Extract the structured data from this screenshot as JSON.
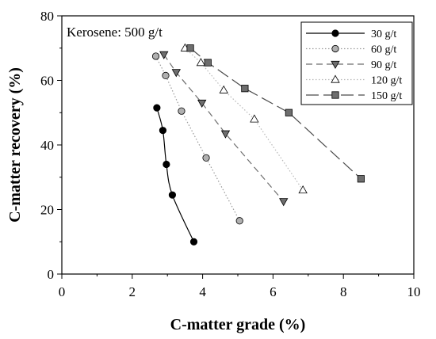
{
  "chart_data": {
    "type": "scatter",
    "xlabel": "C-matter grade (%)",
    "ylabel": "C-matter recovery (%)",
    "xlim": [
      0,
      10
    ],
    "ylim": [
      0,
      80
    ],
    "xticks": [
      "0",
      "2",
      "4",
      "6",
      "8",
      "10"
    ],
    "yticks": [
      "0",
      "20",
      "40",
      "60",
      "80"
    ],
    "annotation": "Kerosene: 500 g/t",
    "grid": false,
    "legend_position": "top-right",
    "series": [
      {
        "name": "30 g/t",
        "marker": "circle",
        "fill": "#000000",
        "line": "solid",
        "line_color": "#000000",
        "points": [
          [
            2.7,
            51.5
          ],
          [
            2.87,
            44.5
          ],
          [
            2.97,
            34
          ],
          [
            3.14,
            24.5
          ],
          [
            3.75,
            10
          ]
        ]
      },
      {
        "name": "60 g/t",
        "marker": "circle",
        "fill": "#b0b0b0",
        "line": "dotted",
        "line_color": "#9a9a9a",
        "points": [
          [
            2.67,
            67.5
          ],
          [
            2.95,
            61.5
          ],
          [
            3.4,
            50.5
          ],
          [
            4.1,
            36
          ],
          [
            5.05,
            16.5
          ]
        ]
      },
      {
        "name": "90 g/t",
        "marker": "triangle-down",
        "fill": "#6e6e6e",
        "line": "dashed",
        "line_color": "#6e6e6e",
        "points": [
          [
            2.9,
            68
          ],
          [
            3.25,
            62.5
          ],
          [
            3.98,
            53
          ],
          [
            4.65,
            43.5
          ],
          [
            6.3,
            22.5
          ]
        ]
      },
      {
        "name": "120 g/t",
        "marker": "triangle-up",
        "fill": "#ffffff",
        "line": "dotted",
        "line_color": "#b8b8b8",
        "points": [
          [
            3.5,
            70
          ],
          [
            3.95,
            65.5
          ],
          [
            4.6,
            57
          ],
          [
            5.47,
            48
          ],
          [
            6.85,
            26
          ]
        ]
      },
      {
        "name": "150 g/t",
        "marker": "square",
        "fill": "#6e6e6e",
        "line": "longdash",
        "line_color": "#4a4a4a",
        "points": [
          [
            3.65,
            70
          ],
          [
            4.15,
            65.5
          ],
          [
            5.2,
            57.5
          ],
          [
            6.45,
            50
          ],
          [
            8.5,
            29.5
          ]
        ]
      }
    ]
  }
}
